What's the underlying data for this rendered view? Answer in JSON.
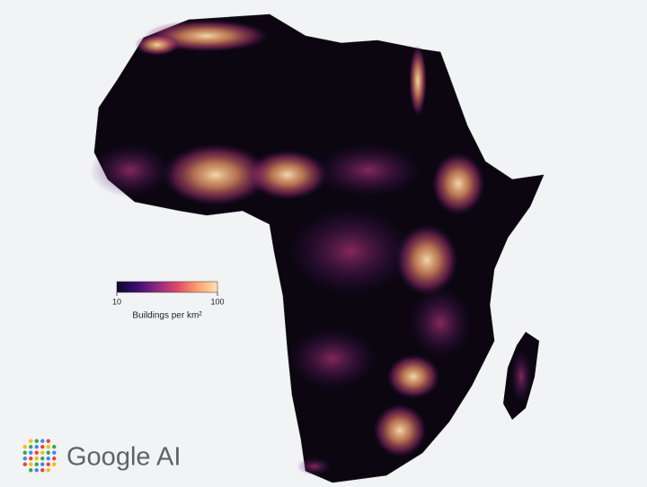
{
  "colorbar": {
    "label": "Buildings per km²",
    "lim": [
      10,
      100
    ],
    "ticks": [
      10,
      100
    ],
    "scale": "log",
    "colors": [
      "#0d0829",
      "#3b0f70",
      "#8c2981",
      "#de4968",
      "#fe9f6d",
      "#fde3b0"
    ]
  },
  "logo": {
    "text": "Google AI"
  }
}
